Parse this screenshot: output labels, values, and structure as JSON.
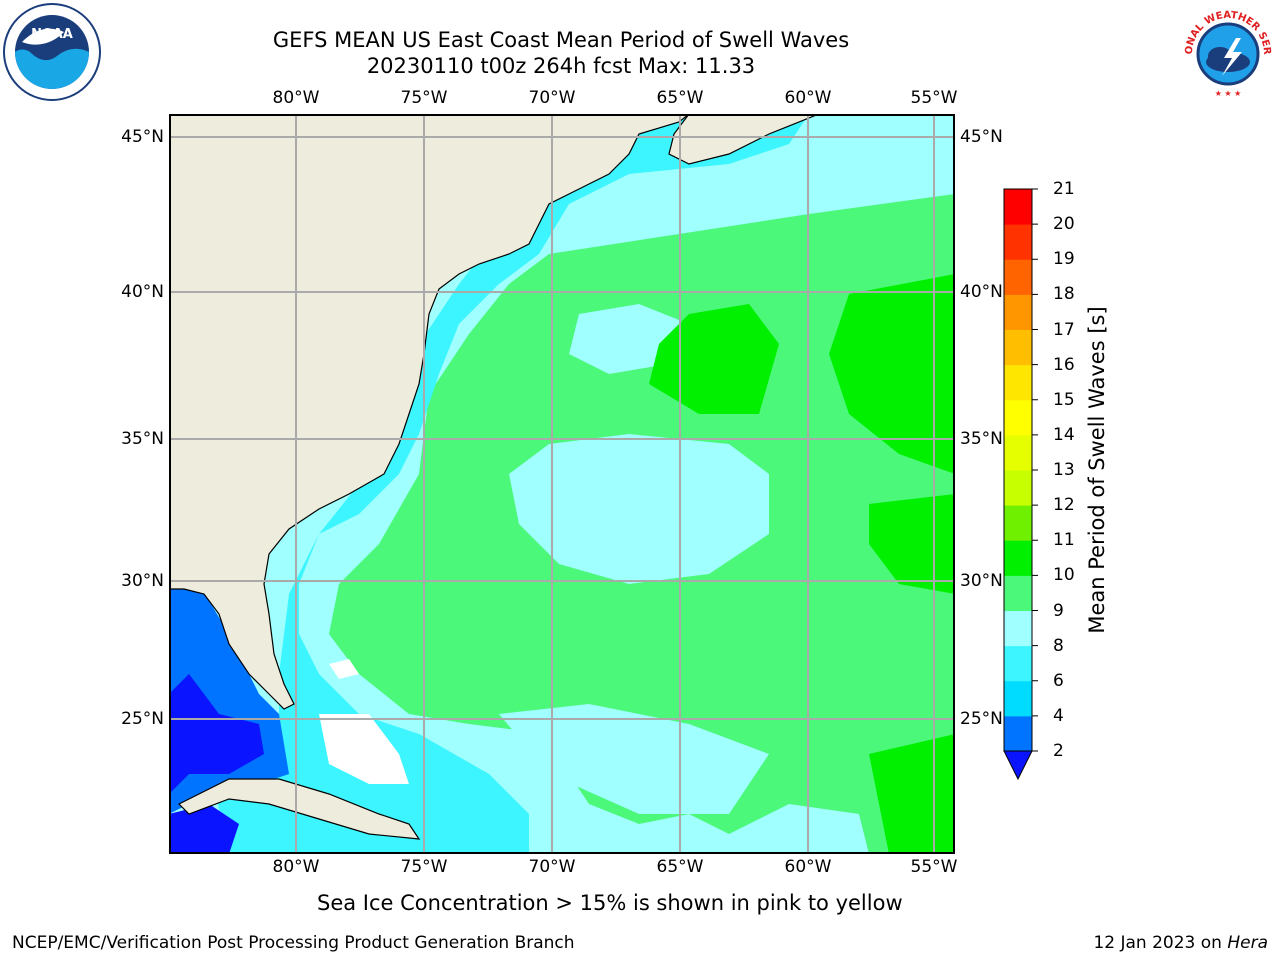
{
  "title": {
    "line1": "GEFS MEAN US East Coast Mean Period of Swell Waves",
    "line2": "20230110 t00z 264h fcst   Max: 11.33"
  },
  "logos": {
    "left": "NOAA",
    "right": "NATIONAL WEATHER SERVICE"
  },
  "map": {
    "longitude_labels": [
      "80°W",
      "75°W",
      "70°W",
      "65°W",
      "60°W",
      "55°W"
    ],
    "latitude_labels": [
      "45°N",
      "40°N",
      "35°N",
      "30°N",
      "25°N"
    ],
    "gridlines": true,
    "land_color": "#eeecdc"
  },
  "colorbar": {
    "title": "Mean Period of Swell Waves [s]",
    "tick_labels": [
      "2",
      "4",
      "6",
      "8",
      "9",
      "10",
      "11",
      "12",
      "13",
      "14",
      "15",
      "16",
      "17",
      "18",
      "19",
      "20",
      "21"
    ],
    "colors": [
      "#0073ff",
      "#00dcff",
      "#3cf5ff",
      "#a0ffff",
      "#4bf87a",
      "#00f000",
      "#6ef000",
      "#c8ff00",
      "#e6ff00",
      "#ffff00",
      "#ffe600",
      "#ffbe00",
      "#ff9600",
      "#ff6400",
      "#ff3200",
      "#ff0000"
    ],
    "under_color": "#0a14ff"
  },
  "footnote": "Sea Ice Concentration > 15% is shown in pink to yellow",
  "credit": "NCEP/EMC/Verification Post Processing Product Generation Branch",
  "date_text": "12 Jan 2023 on ",
  "machine": "Hera"
}
